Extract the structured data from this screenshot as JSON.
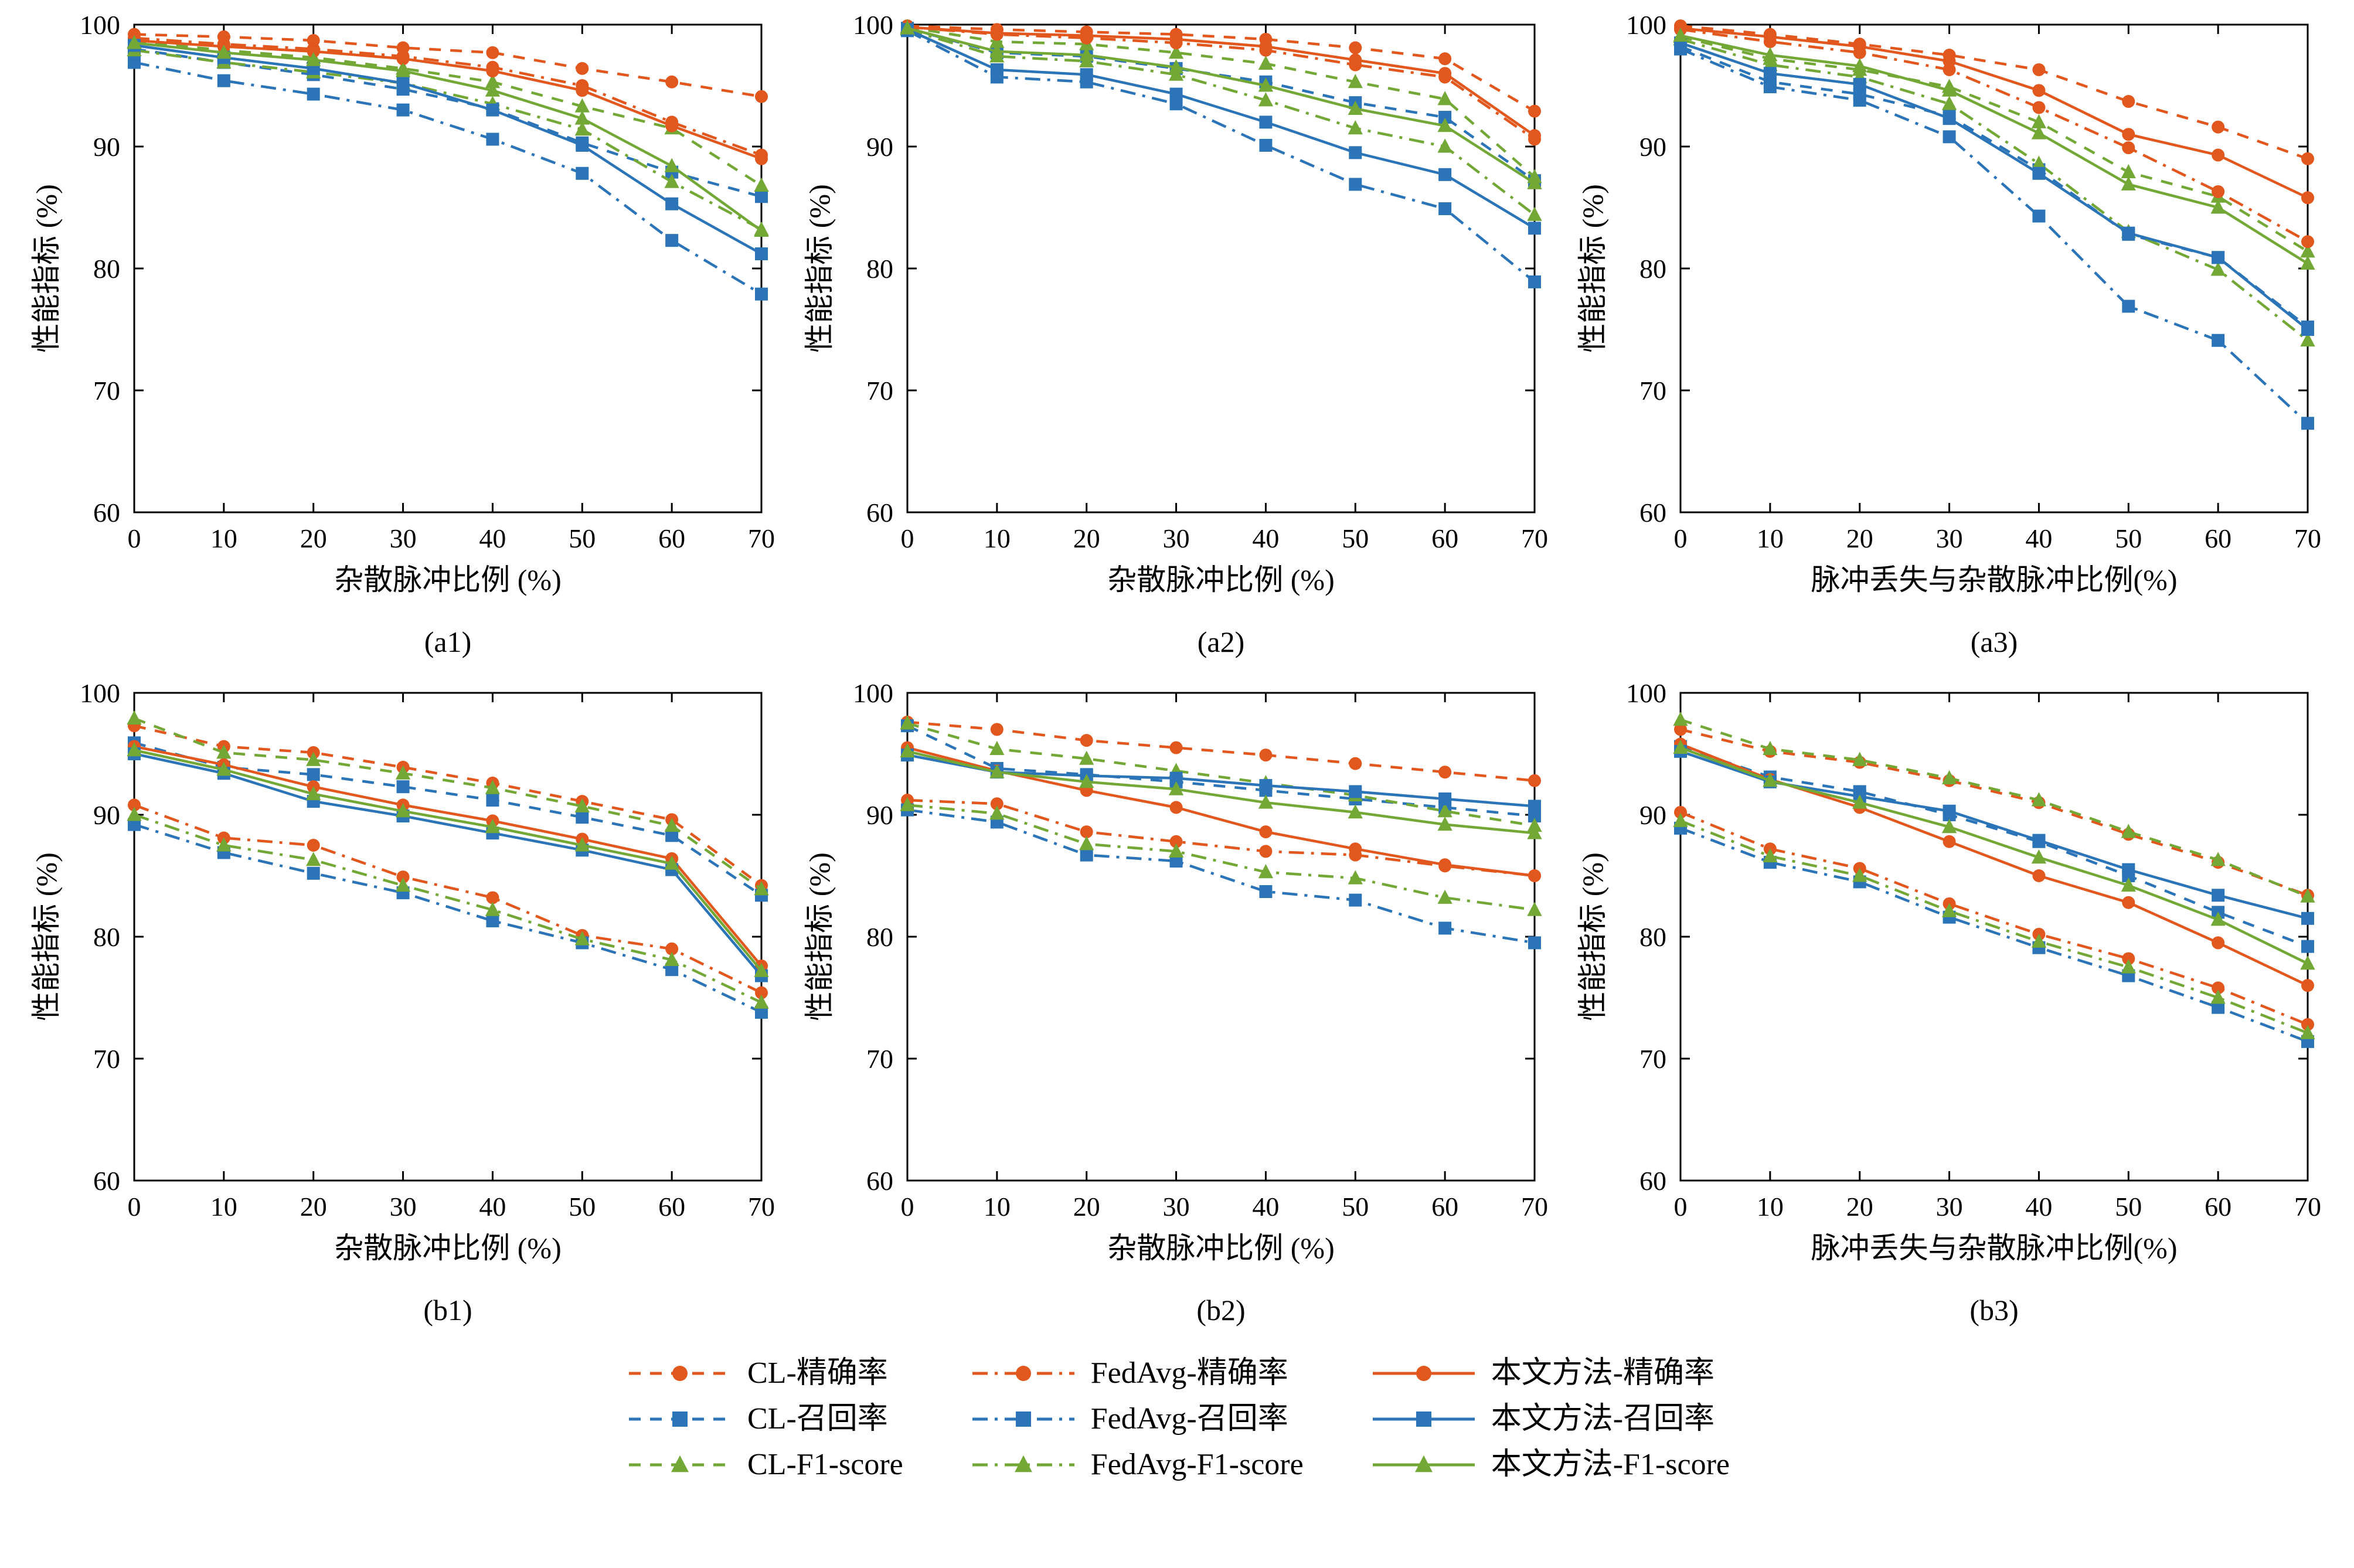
{
  "colors": {
    "orange": "#e2571d",
    "blue": "#2b74b8",
    "green": "#73a836"
  },
  "series_styles": {
    "CL-精确率": {
      "color": "orange",
      "dash": "dashed",
      "marker": "circle"
    },
    "CL-召回率": {
      "color": "blue",
      "dash": "dashed",
      "marker": "square"
    },
    "CL-F1-score": {
      "color": "green",
      "dash": "dashed",
      "marker": "triangle"
    },
    "FedAvg-精确率": {
      "color": "orange",
      "dash": "dashdot",
      "marker": "circle"
    },
    "FedAvg-召回率": {
      "color": "blue",
      "dash": "dashdot",
      "marker": "square"
    },
    "FedAvg-F1-score": {
      "color": "green",
      "dash": "dashdot",
      "marker": "triangle"
    },
    "本文方法-精确率": {
      "color": "orange",
      "dash": "solid",
      "marker": "circle"
    },
    "本文方法-召回率": {
      "color": "blue",
      "dash": "solid",
      "marker": "square"
    },
    "本文方法-F1-score": {
      "color": "green",
      "dash": "solid",
      "marker": "triangle"
    }
  },
  "legend": {
    "columns": [
      [
        "CL-精确率",
        "CL-召回率",
        "CL-F1-score"
      ],
      [
        "FedAvg-精确率",
        "FedAvg-召回率",
        "FedAvg-F1-score"
      ],
      [
        "本文方法-精确率",
        "本文方法-召回率",
        "本文方法-F1-score"
      ]
    ]
  },
  "chart_data": [
    {
      "id": "a1",
      "type": "line",
      "caption": "(a1)",
      "xlabel": "杂散脉冲比例 (%)",
      "ylabel": "性能指标 (%)",
      "x": [
        0,
        10,
        20,
        30,
        40,
        50,
        60,
        70
      ],
      "xlim": [
        0,
        70
      ],
      "ylim": [
        60,
        100
      ],
      "yticks": [
        60,
        70,
        80,
        90,
        100
      ],
      "grid": false,
      "series": [
        {
          "name": "CL-精确率",
          "values": [
            99.2,
            99.0,
            98.7,
            98.1,
            97.7,
            96.4,
            95.3,
            94.1
          ]
        },
        {
          "name": "CL-召回率",
          "values": [
            98.0,
            96.9,
            95.9,
            94.7,
            93.1,
            90.3,
            87.9,
            85.9
          ]
        },
        {
          "name": "CL-F1-score",
          "values": [
            98.6,
            97.9,
            97.3,
            96.4,
            95.3,
            93.3,
            91.5,
            86.8
          ]
        },
        {
          "name": "FedAvg-精确率",
          "values": [
            98.9,
            98.4,
            98.0,
            97.4,
            96.5,
            95.0,
            92.0,
            89.3
          ]
        },
        {
          "name": "FedAvg-召回率",
          "values": [
            96.9,
            95.4,
            94.3,
            93.0,
            90.6,
            87.8,
            82.3,
            77.9
          ]
        },
        {
          "name": "FedAvg-F1-score",
          "values": [
            97.9,
            96.9,
            96.1,
            95.2,
            93.5,
            91.4,
            87.1,
            83.2
          ]
        },
        {
          "name": "本文方法-精确率",
          "values": [
            98.7,
            98.2,
            97.8,
            97.2,
            96.2,
            94.6,
            91.7,
            89.0
          ]
        },
        {
          "name": "本文方法-召回率",
          "values": [
            98.3,
            97.3,
            96.4,
            95.2,
            93.0,
            90.1,
            85.3,
            81.2
          ]
        },
        {
          "name": "本文方法-F1-score",
          "values": [
            98.5,
            97.7,
            97.1,
            96.2,
            94.6,
            92.3,
            88.4,
            83.1
          ]
        }
      ]
    },
    {
      "id": "a2",
      "type": "line",
      "caption": "(a2)",
      "xlabel": "杂散脉冲比例 (%)",
      "ylabel": "性能指标 (%)",
      "x": [
        0,
        10,
        20,
        30,
        40,
        50,
        60,
        70
      ],
      "xlim": [
        0,
        70
      ],
      "ylim": [
        60,
        100
      ],
      "yticks": [
        60,
        70,
        80,
        90,
        100
      ],
      "grid": false,
      "series": [
        {
          "name": "CL-精确率",
          "values": [
            99.9,
            99.6,
            99.4,
            99.2,
            98.8,
            98.1,
            97.2,
            92.9
          ]
        },
        {
          "name": "CL-召回率",
          "values": [
            99.7,
            97.7,
            97.4,
            96.4,
            95.3,
            93.6,
            92.4,
            87.2
          ]
        },
        {
          "name": "CL-F1-score",
          "values": [
            99.8,
            98.6,
            98.4,
            97.7,
            96.8,
            95.3,
            93.9,
            87.5
          ]
        },
        {
          "name": "FedAvg-精确率",
          "values": [
            99.8,
            99.2,
            98.9,
            98.5,
            97.9,
            96.7,
            95.7,
            90.6
          ]
        },
        {
          "name": "FedAvg-召回率",
          "values": [
            99.5,
            95.7,
            95.3,
            93.5,
            90.1,
            86.9,
            84.9,
            78.9
          ]
        },
        {
          "name": "FedAvg-F1-score",
          "values": [
            99.6,
            97.4,
            97.0,
            95.9,
            93.8,
            91.5,
            90.0,
            84.4
          ]
        },
        {
          "name": "本文方法-精确率",
          "values": [
            99.8,
            99.3,
            99.1,
            98.8,
            98.2,
            97.1,
            96.0,
            90.9
          ]
        },
        {
          "name": "本文方法-召回率",
          "values": [
            99.6,
            96.3,
            95.9,
            94.3,
            92.0,
            89.5,
            87.7,
            83.3
          ]
        },
        {
          "name": "本文方法-F1-score",
          "values": [
            99.7,
            97.8,
            97.5,
            96.5,
            95.0,
            93.1,
            91.7,
            87.0
          ]
        }
      ]
    },
    {
      "id": "a3",
      "type": "line",
      "caption": "(a3)",
      "xlabel": "脉冲丢失与杂散脉冲比例(%)",
      "ylabel": "性能指标 (%)",
      "x": [
        0,
        10,
        20,
        30,
        40,
        50,
        60,
        70
      ],
      "xlim": [
        0,
        70
      ],
      "ylim": [
        60,
        100
      ],
      "yticks": [
        60,
        70,
        80,
        90,
        100
      ],
      "grid": false,
      "series": [
        {
          "name": "CL-精确率",
          "values": [
            99.9,
            99.2,
            98.4,
            97.5,
            96.3,
            93.7,
            91.6,
            89.0
          ]
        },
        {
          "name": "CL-召回率",
          "values": [
            98.2,
            95.3,
            94.3,
            92.5,
            88.1,
            82.8,
            80.9,
            75.2
          ]
        },
        {
          "name": "CL-F1-score",
          "values": [
            99.0,
            97.2,
            96.3,
            94.9,
            92.0,
            87.9,
            85.9,
            81.4
          ]
        },
        {
          "name": "FedAvg-精确率",
          "values": [
            99.6,
            98.6,
            97.7,
            96.3,
            93.2,
            89.9,
            86.3,
            82.2
          ]
        },
        {
          "name": "FedAvg-召回率",
          "values": [
            98.0,
            94.9,
            93.8,
            90.8,
            84.3,
            76.9,
            74.1,
            67.3
          ]
        },
        {
          "name": "FedAvg-F1-score",
          "values": [
            98.8,
            96.7,
            95.7,
            93.5,
            88.6,
            83.0,
            79.9,
            74.1
          ]
        },
        {
          "name": "本文方法-精确率",
          "values": [
            99.7,
            99.0,
            98.2,
            97.0,
            94.6,
            91.0,
            89.3,
            85.8
          ]
        },
        {
          "name": "本文方法-召回率",
          "values": [
            98.5,
            96.0,
            95.1,
            92.3,
            87.8,
            82.9,
            80.9,
            75.0
          ]
        },
        {
          "name": "本文方法-F1-score",
          "values": [
            99.1,
            97.5,
            96.6,
            94.6,
            91.1,
            86.9,
            85.0,
            80.4
          ]
        }
      ]
    },
    {
      "id": "b1",
      "type": "line",
      "caption": "(b1)",
      "xlabel": "杂散脉冲比例 (%)",
      "ylabel": "性能指标 (%)",
      "x": [
        0,
        10,
        20,
        30,
        40,
        50,
        60,
        70
      ],
      "xlim": [
        0,
        70
      ],
      "ylim": [
        60,
        100
      ],
      "yticks": [
        60,
        70,
        80,
        90,
        100
      ],
      "grid": false,
      "series": [
        {
          "name": "CL-精确率",
          "values": [
            97.3,
            95.6,
            95.1,
            93.9,
            92.6,
            91.1,
            89.6,
            84.2
          ]
        },
        {
          "name": "CL-召回率",
          "values": [
            95.9,
            93.9,
            93.3,
            92.3,
            91.2,
            89.8,
            88.3,
            83.4
          ]
        },
        {
          "name": "CL-F1-score",
          "values": [
            97.9,
            95.1,
            94.5,
            93.4,
            92.2,
            90.7,
            89.1,
            83.9
          ]
        },
        {
          "name": "FedAvg-精确率",
          "values": [
            90.8,
            88.1,
            87.5,
            84.9,
            83.2,
            80.1,
            79.0,
            75.4
          ]
        },
        {
          "name": "FedAvg-召回率",
          "values": [
            89.2,
            86.9,
            85.2,
            83.6,
            81.3,
            79.5,
            77.3,
            73.8
          ]
        },
        {
          "name": "FedAvg-F1-score",
          "values": [
            90.0,
            87.5,
            86.3,
            84.2,
            82.2,
            79.8,
            78.1,
            74.6
          ]
        },
        {
          "name": "本文方法-精确率",
          "values": [
            95.6,
            94.1,
            92.3,
            90.8,
            89.5,
            88.0,
            86.4,
            77.6
          ]
        },
        {
          "name": "本文方法-召回率",
          "values": [
            95.0,
            93.4,
            91.1,
            89.9,
            88.5,
            87.1,
            85.5,
            76.8
          ]
        },
        {
          "name": "本文方法-F1-score",
          "values": [
            95.3,
            93.7,
            91.7,
            90.3,
            89.0,
            87.5,
            86.0,
            77.2
          ]
        }
      ]
    },
    {
      "id": "b2",
      "type": "line",
      "caption": "(b2)",
      "xlabel": "杂散脉冲比例 (%)",
      "ylabel": "性能指标 (%)",
      "x": [
        0,
        10,
        20,
        30,
        40,
        50,
        60,
        70
      ],
      "xlim": [
        0,
        70
      ],
      "ylim": [
        60,
        100
      ],
      "yticks": [
        60,
        70,
        80,
        90,
        100
      ],
      "grid": false,
      "series": [
        {
          "name": "CL-精确率",
          "values": [
            97.6,
            97.0,
            96.1,
            95.5,
            94.9,
            94.2,
            93.5,
            92.8
          ]
        },
        {
          "name": "CL-召回率",
          "values": [
            97.3,
            93.8,
            93.3,
            92.7,
            92.0,
            91.3,
            90.6,
            89.9
          ]
        },
        {
          "name": "CL-F1-score",
          "values": [
            97.5,
            95.4,
            94.6,
            93.6,
            92.6,
            91.6,
            90.3,
            89.1
          ]
        },
        {
          "name": "FedAvg-精确率",
          "values": [
            91.2,
            90.9,
            88.6,
            87.8,
            87.0,
            86.7,
            85.8,
            85.0
          ]
        },
        {
          "name": "FedAvg-召回率",
          "values": [
            90.4,
            89.4,
            86.7,
            86.2,
            83.7,
            83.0,
            80.7,
            79.5
          ]
        },
        {
          "name": "FedAvg-F1-score",
          "values": [
            90.8,
            90.1,
            87.6,
            87.0,
            85.3,
            84.8,
            83.2,
            82.2
          ]
        },
        {
          "name": "本文方法-精确率",
          "values": [
            95.5,
            93.6,
            92.0,
            90.6,
            88.6,
            87.2,
            85.9,
            85.0
          ]
        },
        {
          "name": "本文方法-召回率",
          "values": [
            94.9,
            93.5,
            93.2,
            93.0,
            92.4,
            91.9,
            91.3,
            90.7
          ]
        },
        {
          "name": "本文方法-F1-score",
          "values": [
            95.2,
            93.5,
            92.7,
            92.1,
            91.0,
            90.2,
            89.2,
            88.5
          ]
        }
      ]
    },
    {
      "id": "b3",
      "type": "line",
      "caption": "(b3)",
      "xlabel": "脉冲丢失与杂散脉冲比例(%)",
      "ylabel": "性能指标 (%)",
      "x": [
        0,
        10,
        20,
        30,
        40,
        50,
        60,
        70
      ],
      "xlim": [
        0,
        70
      ],
      "ylim": [
        60,
        100
      ],
      "yticks": [
        60,
        70,
        80,
        90,
        100
      ],
      "grid": false,
      "series": [
        {
          "name": "CL-精确率",
          "values": [
            97.0,
            95.2,
            94.3,
            92.8,
            91.0,
            88.4,
            86.1,
            83.4
          ]
        },
        {
          "name": "CL-召回率",
          "values": [
            95.6,
            93.1,
            91.9,
            90.0,
            87.8,
            85.0,
            82.0,
            79.2
          ]
        },
        {
          "name": "CL-F1-score",
          "values": [
            97.8,
            95.4,
            94.5,
            93.0,
            91.2,
            88.6,
            86.3,
            83.3
          ]
        },
        {
          "name": "FedAvg-精确率",
          "values": [
            90.2,
            87.2,
            85.6,
            82.7,
            80.2,
            78.2,
            75.8,
            72.8
          ]
        },
        {
          "name": "FedAvg-召回率",
          "values": [
            88.9,
            86.1,
            84.5,
            81.6,
            79.1,
            76.8,
            74.2,
            71.4
          ]
        },
        {
          "name": "FedAvg-F1-score",
          "values": [
            89.5,
            86.6,
            85.0,
            82.1,
            79.6,
            77.5,
            75.0,
            72.1
          ]
        },
        {
          "name": "本文方法-精确率",
          "values": [
            95.8,
            92.9,
            90.6,
            87.8,
            85.0,
            82.8,
            79.5,
            76.0
          ]
        },
        {
          "name": "本文方法-召回率",
          "values": [
            95.2,
            92.7,
            91.5,
            90.3,
            87.9,
            85.5,
            83.4,
            81.5
          ]
        },
        {
          "name": "本文方法-F1-score",
          "values": [
            95.5,
            92.8,
            91.0,
            89.0,
            86.5,
            84.2,
            81.4,
            77.8
          ]
        }
      ]
    }
  ]
}
